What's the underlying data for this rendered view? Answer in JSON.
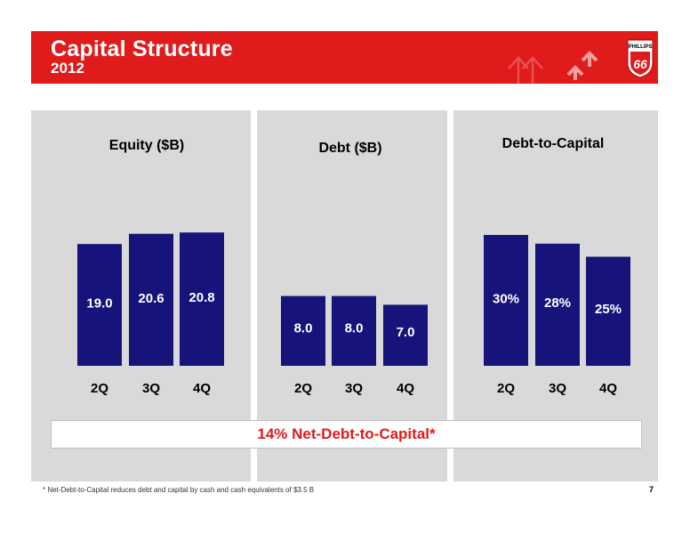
{
  "header": {
    "title": "Capital Structure",
    "subtitle": "2012",
    "brand": "PHILLIPS",
    "brand_number": "66"
  },
  "colors": {
    "accent_red": "#e01b1b",
    "bar_navy": "#16137a",
    "panel_gray": "#d9d9d9"
  },
  "chart_data": [
    {
      "type": "bar",
      "title": "Equity ($B)",
      "categories": [
        "2Q",
        "3Q",
        "4Q"
      ],
      "values": [
        19.0,
        20.6,
        20.8
      ],
      "labels": [
        "19.0",
        "20.6",
        "20.8"
      ],
      "ylim": [
        0,
        24.5
      ]
    },
    {
      "type": "bar",
      "title": "Debt ($B)",
      "categories": [
        "2Q",
        "3Q",
        "4Q"
      ],
      "values": [
        8.0,
        8.0,
        7.0
      ],
      "labels": [
        "8.0",
        "8.0",
        "7.0"
      ],
      "ylim": [
        0,
        24.5
      ]
    },
    {
      "type": "bar",
      "title": "Debt-to-Capital",
      "categories": [
        "2Q",
        "3Q",
        "4Q"
      ],
      "values": [
        30,
        28,
        25
      ],
      "labels": [
        "30%",
        "28%",
        "25%"
      ],
      "ylim": [
        0,
        40
      ]
    }
  ],
  "summary": {
    "net_debt_to_capital": "14%  Net-Debt-to-Capital*"
  },
  "footnote": "*  Net-Debt-to-Capital reduces debt and capital by cash and cash equivalents of $3.5 B",
  "page_number": "7"
}
